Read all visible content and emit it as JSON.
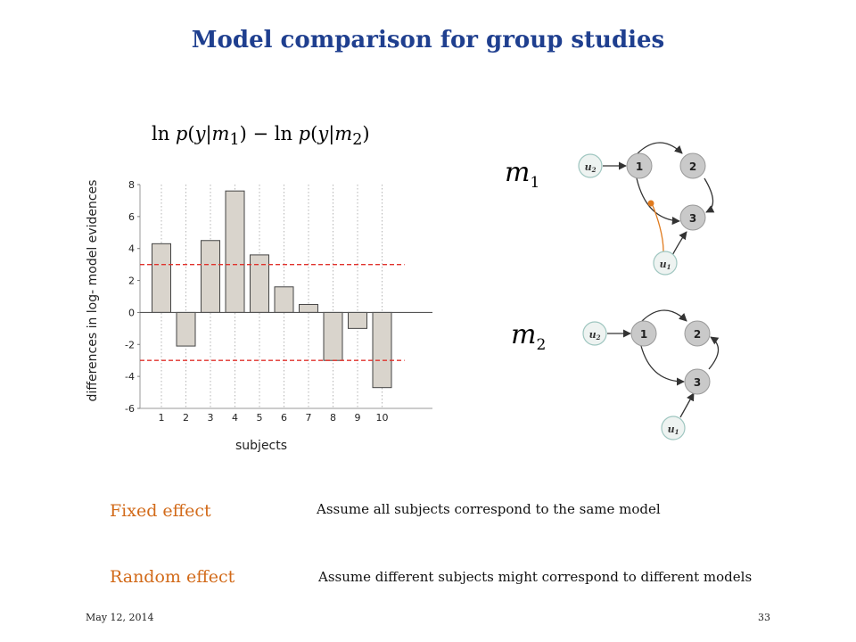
{
  "slide": {
    "title": "Model comparison for group studies",
    "footer_date": "May 12, 2014",
    "page_number": "33"
  },
  "chart_data": {
    "type": "bar",
    "title_formula": "ln p(y|m1) − ln p(y|m2)",
    "xlabel": "subjects",
    "ylabel": "differences in log- model evidences",
    "categories": [
      "1",
      "2",
      "3",
      "4",
      "5",
      "6",
      "7",
      "8",
      "9",
      "10"
    ],
    "values": [
      4.3,
      -2.1,
      4.5,
      7.6,
      3.6,
      1.6,
      0.5,
      -3.0,
      -1.0,
      -4.7
    ],
    "ylim": [
      -6,
      8
    ],
    "yticks": [
      "8",
      "6",
      "4",
      "2",
      "0",
      "-2",
      "-4",
      "-6"
    ],
    "reference_lines": [
      3,
      -3
    ],
    "bar_color": "#d9d4cc",
    "reference_line_color": "#e0322c"
  },
  "models": [
    {
      "base": "m",
      "sub": "1",
      "nodes": [
        "1",
        "2",
        "3"
      ],
      "inputs": [
        "u2",
        "u1"
      ],
      "modulation_color": "#e07b1f"
    },
    {
      "base": "m",
      "sub": "2",
      "nodes": [
        "1",
        "2",
        "3"
      ],
      "inputs": [
        "u2",
        "u1"
      ]
    }
  ],
  "effects": [
    {
      "label": "Fixed effect",
      "description": "Assume all subjects correspond to the same model"
    },
    {
      "label": "Random effect",
      "description": "Assume different subjects might correspond to different models"
    }
  ],
  "colors": {
    "title": "#1f3f8f",
    "effect_label": "#d26a19"
  }
}
